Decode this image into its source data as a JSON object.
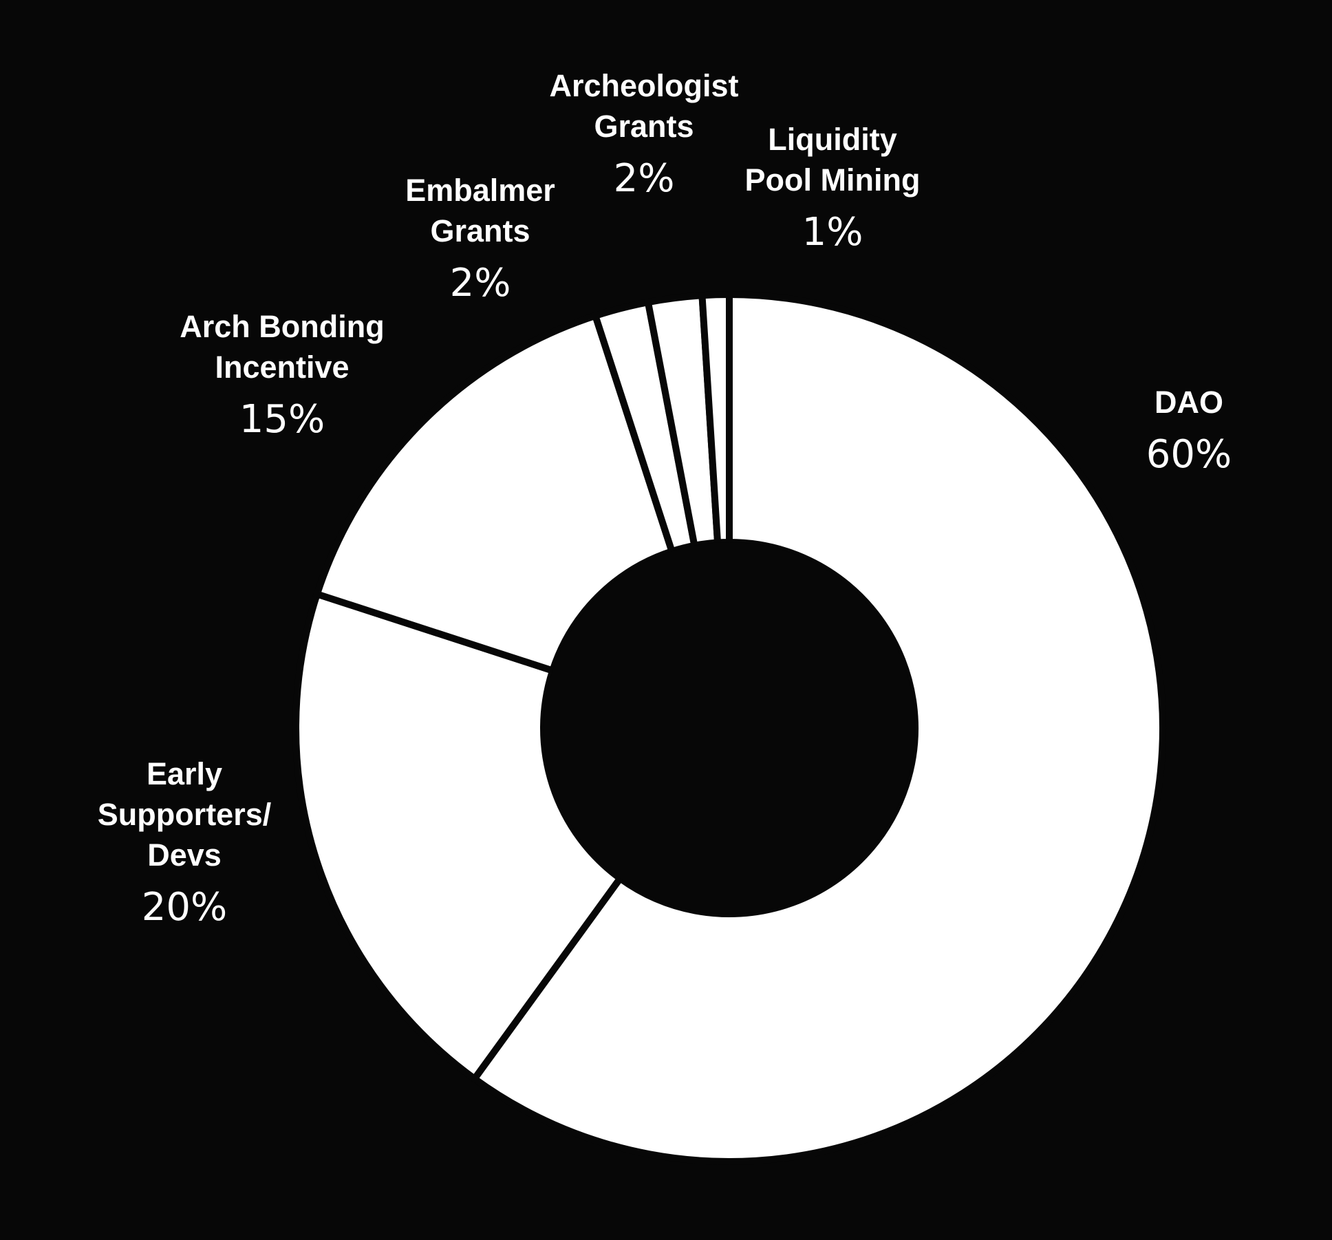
{
  "chart_data": {
    "type": "pie",
    "style": "donut",
    "colors": {
      "background": "#070707",
      "slice_fill": "#ffffff",
      "separator": "#070707",
      "text": "#ffffff"
    },
    "slices": [
      {
        "label": [
          "DAO"
        ],
        "value": 60,
        "value_label": "60%"
      },
      {
        "label": [
          "Early",
          "Supporters/",
          "Devs"
        ],
        "value": 20,
        "value_label": "20%"
      },
      {
        "label": [
          "Arch Bonding",
          "Incentive"
        ],
        "value": 15,
        "value_label": "15%"
      },
      {
        "label": [
          "Embalmer",
          "Grants"
        ],
        "value": 2,
        "value_label": "2%"
      },
      {
        "label": [
          "Archeologist",
          "Grants"
        ],
        "value": 2,
        "value_label": "2%"
      },
      {
        "label": [
          "Liquidity",
          "Pool Mining"
        ],
        "value": 1,
        "value_label": "1%"
      }
    ]
  }
}
